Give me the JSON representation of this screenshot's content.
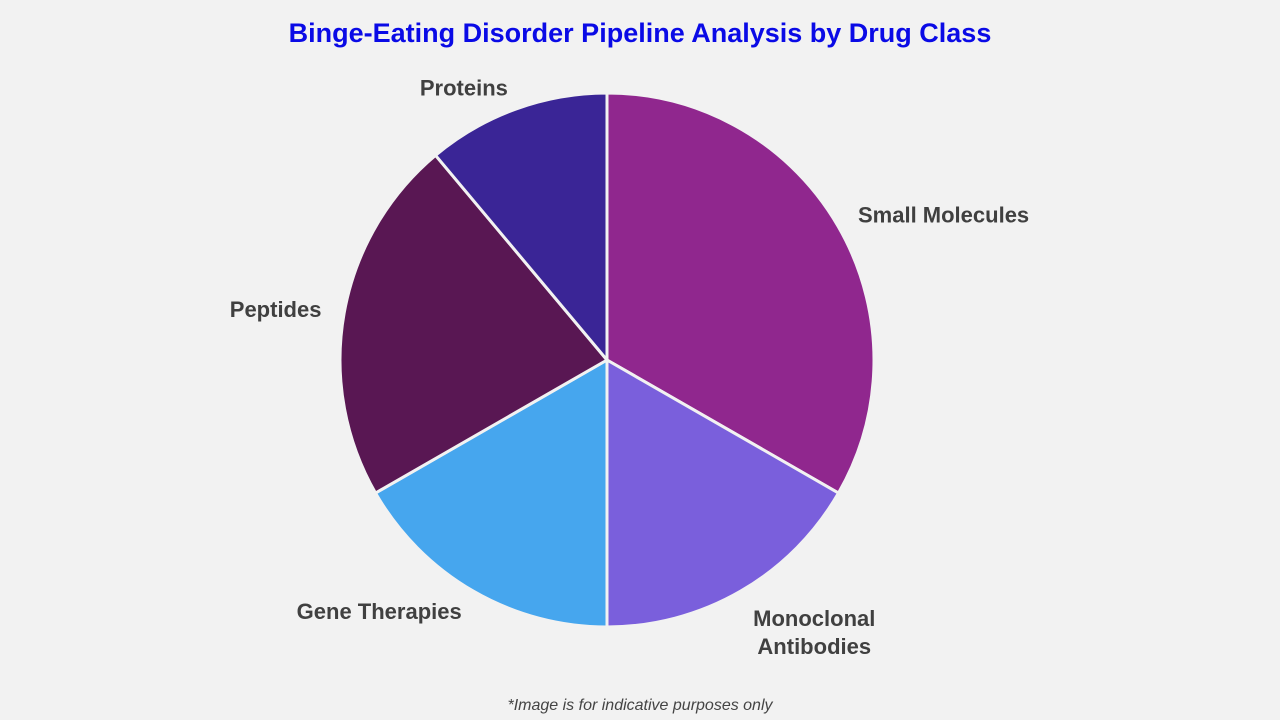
{
  "chart_data": {
    "type": "pie",
    "title": "Binge-Eating Disorder Pipeline Analysis by Drug Class",
    "start_angle": "12 o'clock, clockwise",
    "slices": [
      {
        "label": [
          "Small Molecules"
        ],
        "value": 33.3,
        "color": "#90278e"
      },
      {
        "label": [
          "Monoclonal",
          "Antibodies"
        ],
        "value": 16.7,
        "color": "#7a5fdc"
      },
      {
        "label": [
          "Gene Therapies"
        ],
        "value": 16.7,
        "color": "#46a6ee"
      },
      {
        "label": [
          "Peptides"
        ],
        "value": 22.2,
        "color": "#591753"
      },
      {
        "label": [
          "Proteins"
        ],
        "value": 11.1,
        "color": "#3a2596"
      }
    ],
    "legend": "none",
    "footnote": "*Image is for indicative purposes only"
  }
}
